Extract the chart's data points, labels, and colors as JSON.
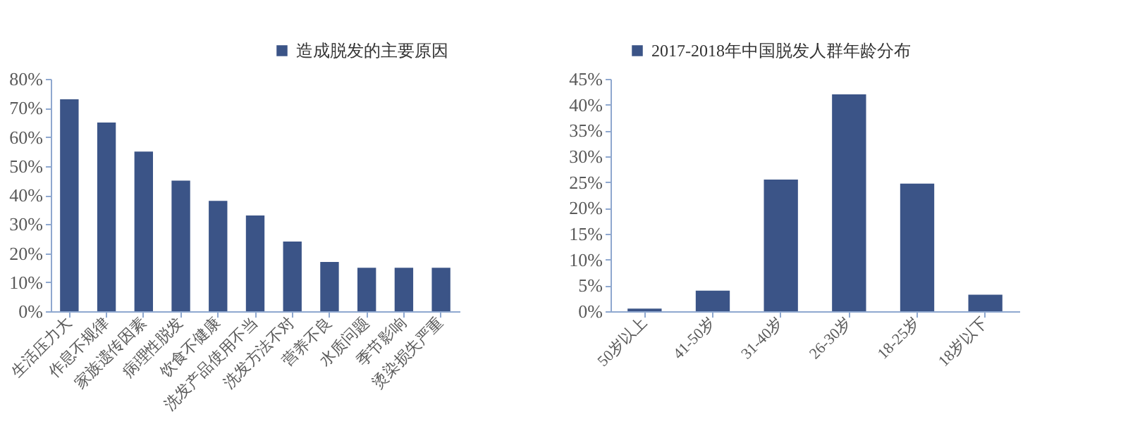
{
  "chart_data": [
    {
      "type": "bar",
      "categories": [
        "生活压力大",
        "作息不规律",
        "家族遗传因素",
        "病理性脱发",
        "饮食不健康",
        "洗发产品使用不当",
        "洗发方法不对",
        "营养不良",
        "水质问题",
        "季节影响",
        "烫染损失严重"
      ],
      "series": [
        {
          "name": "造成脱发的主要原因",
          "color": "#3b5487",
          "values": [
            73,
            65,
            55,
            45,
            38,
            33,
            24,
            17,
            15,
            15,
            15
          ]
        }
      ],
      "ylim": [
        0,
        80
      ],
      "yticks": [
        {
          "value": 0,
          "label": "0%"
        },
        {
          "value": 10,
          "label": "10%"
        },
        {
          "value": 20,
          "label": "20%"
        },
        {
          "value": 30,
          "label": "30%"
        },
        {
          "value": 40,
          "label": "40%"
        },
        {
          "value": 50,
          "label": "50%"
        },
        {
          "value": 60,
          "label": "60%"
        },
        {
          "value": 70,
          "label": "70%"
        },
        {
          "value": 80,
          "label": "80%"
        }
      ],
      "legend": "top right"
    },
    {
      "type": "bar",
      "categories": [
        "50岁以上",
        "41-50岁",
        "31-40岁",
        "26-30岁",
        "18-25岁",
        "18岁以下"
      ],
      "series": [
        {
          "name": "2017-2018年中国脱发人群年龄分布",
          "color": "#3b5487",
          "values": [
            0.5,
            4,
            25.5,
            42,
            24.7,
            3.2
          ]
        }
      ],
      "ylim": [
        0,
        45
      ],
      "yticks": [
        {
          "value": 0,
          "label": "0%"
        },
        {
          "value": 5,
          "label": "5%"
        },
        {
          "value": 10,
          "label": "10%"
        },
        {
          "value": 15,
          "label": "15%"
        },
        {
          "value": 20,
          "label": "20%"
        },
        {
          "value": 25,
          "label": "25%"
        },
        {
          "value": 30,
          "label": "30%"
        },
        {
          "value": 35,
          "label": "35%"
        },
        {
          "value": 40,
          "label": "40%"
        },
        {
          "value": 45,
          "label": "45%"
        }
      ],
      "legend": "top"
    }
  ]
}
